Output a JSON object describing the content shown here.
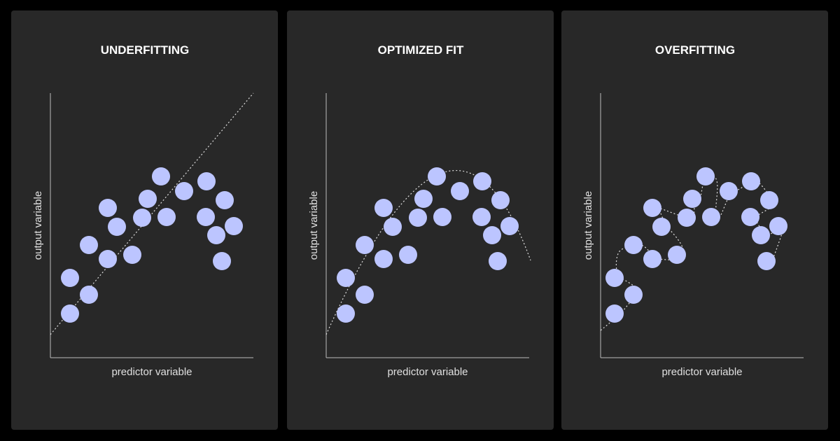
{
  "panels": [
    {
      "title": "UNDERFITTING",
      "x_label": "predictor variable",
      "y_label": "output variable"
    },
    {
      "title": "OPTIMIZED FIT",
      "x_label": "predictor variable",
      "y_label": "output variable"
    },
    {
      "title": "OVERFITTING",
      "x_label": "predictor variable",
      "y_label": "output variable"
    }
  ]
}
